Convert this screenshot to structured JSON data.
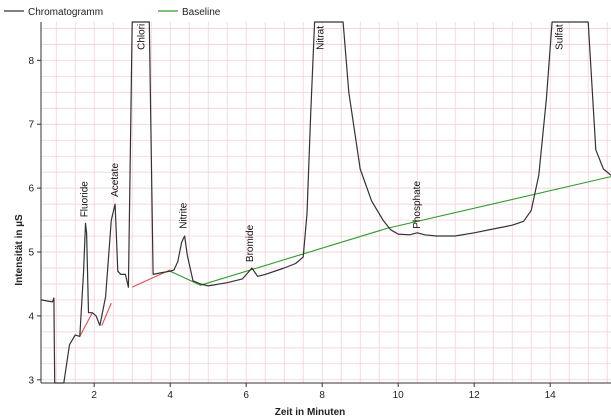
{
  "chart_data": {
    "type": "line",
    "xlabel": "Zeit in Minuten",
    "ylabel": "Intensität in µS",
    "xlim": [
      0.6,
      15.6
    ],
    "ylim": [
      2.95,
      8.6
    ],
    "x_ticks": [
      2,
      4,
      6,
      8,
      10,
      12,
      14
    ],
    "y_ticks": [
      3,
      4,
      5,
      6,
      7,
      8
    ],
    "grid": true,
    "legend_position": "top-left",
    "colors": {
      "chromatogram": "#333333",
      "baseline_green": "#2e9a2e",
      "baseline_red": "#e05050",
      "grid": "#f3c9cf",
      "axis": "#333333"
    },
    "series": [
      {
        "name": "Chromatogramm",
        "x": [
          0.6,
          0.9,
          0.94,
          0.95,
          0.96,
          1.0,
          1.2,
          1.35,
          1.5,
          1.62,
          1.72,
          1.77,
          1.8,
          1.85,
          1.95,
          2.05,
          2.15,
          2.3,
          2.45,
          2.55,
          2.62,
          2.7,
          2.82,
          2.9,
          3.0,
          3.05,
          3.12,
          3.2,
          3.25,
          3.35,
          3.45,
          3.55,
          3.8,
          4.0,
          4.1,
          4.2,
          4.3,
          4.38,
          4.45,
          4.6,
          4.8,
          5.0,
          5.5,
          5.9,
          6.05,
          6.15,
          6.3,
          6.5,
          7.0,
          7.3,
          7.5,
          7.6,
          7.7,
          7.8,
          8.55,
          8.7,
          9.0,
          9.3,
          9.6,
          9.8,
          10.0,
          10.3,
          10.5,
          10.7,
          11.0,
          11.5,
          12.0,
          12.5,
          13.0,
          13.3,
          13.5,
          13.7,
          13.9,
          14.05,
          15.0,
          15.2,
          15.4,
          15.6
        ],
        "y": [
          4.25,
          4.22,
          4.28,
          3.6,
          2.9,
          2.9,
          2.95,
          3.55,
          3.7,
          3.68,
          4.7,
          5.45,
          5.3,
          4.05,
          4.05,
          4.0,
          3.85,
          4.3,
          5.5,
          5.75,
          4.7,
          4.65,
          4.65,
          4.45,
          8.6,
          8.6,
          8.6,
          8.6,
          8.6,
          8.6,
          8.6,
          4.65,
          4.68,
          4.7,
          4.72,
          4.85,
          5.15,
          5.25,
          4.95,
          4.55,
          4.5,
          4.47,
          4.52,
          4.58,
          4.68,
          4.75,
          4.62,
          4.65,
          4.75,
          4.82,
          4.92,
          5.6,
          7.2,
          8.6,
          8.6,
          7.5,
          6.3,
          5.8,
          5.5,
          5.35,
          5.28,
          5.27,
          5.3,
          5.27,
          5.25,
          5.25,
          5.3,
          5.36,
          5.42,
          5.48,
          5.65,
          6.2,
          7.4,
          8.6,
          8.6,
          6.6,
          6.3,
          6.2
        ],
        "color": "#333333"
      },
      {
        "name": "Baseline",
        "x": [
          4.0,
          4.8,
          9.7,
          15.6
        ],
        "y": [
          4.7,
          4.48,
          5.37,
          6.18
        ],
        "color": "#2e9a2e"
      }
    ],
    "baseline_integration_segments": [
      {
        "x": [
          1.62,
          1.95
        ],
        "y": [
          3.68,
          4.05
        ]
      },
      {
        "x": [
          2.2,
          2.45
        ],
        "y": [
          3.85,
          4.2
        ]
      },
      {
        "x": [
          2.62,
          2.7
        ],
        "y": [
          4.7,
          4.65
        ]
      },
      {
        "x": [
          3.0,
          4.0
        ],
        "y": [
          4.45,
          4.72
        ]
      }
    ],
    "annotations": [
      {
        "text": "Fluoride",
        "x": 1.75,
        "y": 5.48
      },
      {
        "text": "Acetate",
        "x": 2.55,
        "y": 5.8
      },
      {
        "text": "Chlori",
        "x": 3.25,
        "y": 8.1
      },
      {
        "text": "Nitrite",
        "x": 4.35,
        "y": 5.3
      },
      {
        "text": "Bromide",
        "x": 6.1,
        "y": 4.78
      },
      {
        "text": "Nitrat",
        "x": 7.95,
        "y": 8.1
      },
      {
        "text": "Phosphate",
        "x": 10.5,
        "y": 5.3
      },
      {
        "text": "Sulfat",
        "x": 14.25,
        "y": 8.1
      }
    ]
  }
}
